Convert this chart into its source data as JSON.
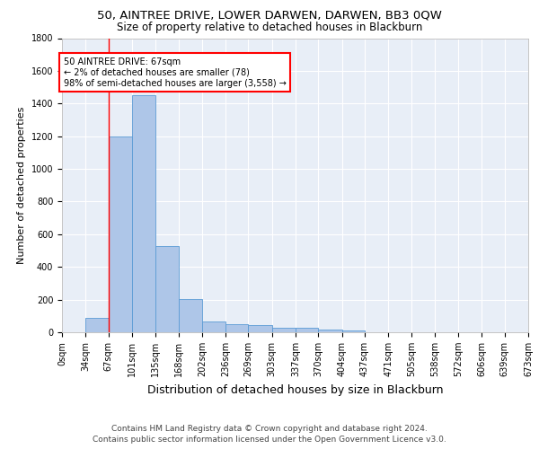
{
  "title": "50, AINTREE DRIVE, LOWER DARWEN, DARWEN, BB3 0QW",
  "subtitle": "Size of property relative to detached houses in Blackburn",
  "xlabel": "Distribution of detached houses by size in Blackburn",
  "ylabel": "Number of detached properties",
  "bin_edges": [
    0,
    34,
    67,
    101,
    135,
    168,
    202,
    236,
    269,
    303,
    337,
    370,
    404,
    437,
    471,
    505,
    538,
    572,
    606,
    639,
    673
  ],
  "bar_values": [
    0,
    90,
    1200,
    1450,
    530,
    205,
    65,
    50,
    45,
    30,
    25,
    15,
    10,
    0,
    0,
    0,
    0,
    0,
    0,
    0
  ],
  "bar_color": "#aec6e8",
  "bar_edge_color": "#5b9bd5",
  "annotation_text": "50 AINTREE DRIVE: 67sqm\n← 2% of detached houses are smaller (78)\n98% of semi-detached houses are larger (3,558) →",
  "annotation_box_color": "white",
  "annotation_box_edge_color": "red",
  "vline_color": "red",
  "vline_x": 67,
  "ylim": [
    0,
    1800
  ],
  "yticks": [
    0,
    200,
    400,
    600,
    800,
    1000,
    1200,
    1400,
    1600,
    1800
  ],
  "xtick_labels": [
    "0sqm",
    "34sqm",
    "67sqm",
    "101sqm",
    "135sqm",
    "168sqm",
    "202sqm",
    "236sqm",
    "269sqm",
    "303sqm",
    "337sqm",
    "370sqm",
    "404sqm",
    "437sqm",
    "471sqm",
    "505sqm",
    "538sqm",
    "572sqm",
    "606sqm",
    "639sqm",
    "673sqm"
  ],
  "background_color": "#e8eef7",
  "grid_color": "white",
  "footer": "Contains HM Land Registry data © Crown copyright and database right 2024.\nContains public sector information licensed under the Open Government Licence v3.0.",
  "title_fontsize": 9.5,
  "subtitle_fontsize": 8.5,
  "xlabel_fontsize": 9,
  "ylabel_fontsize": 8,
  "tick_fontsize": 7,
  "footer_fontsize": 6.5,
  "annotation_fontsize": 7
}
